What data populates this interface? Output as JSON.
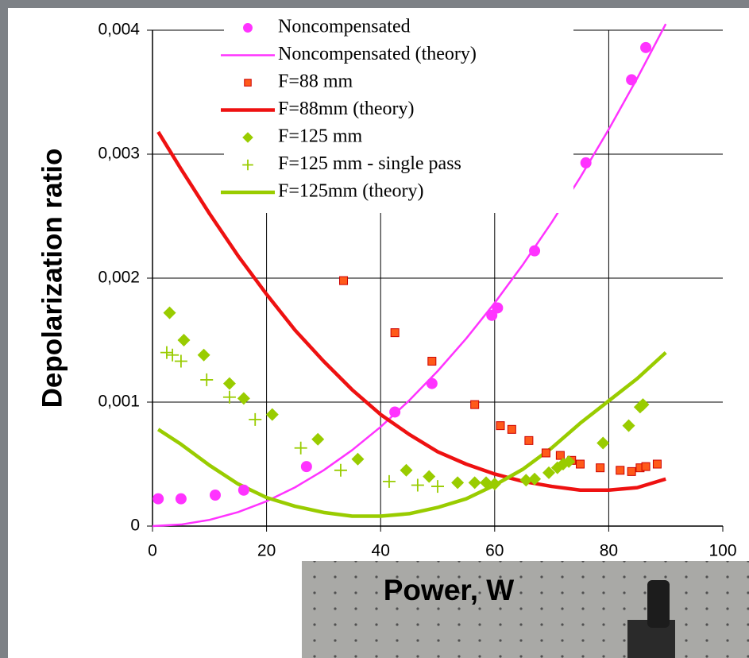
{
  "chart_data": {
    "type": "scatter",
    "x_label": "Power, W",
    "y_label": "Depolarization ratio",
    "xlim": [
      0,
      100
    ],
    "ylim": [
      0,
      0.004
    ],
    "xticks": [
      0,
      20,
      40,
      60,
      80,
      100
    ],
    "yticks": [
      0,
      {
        "value": 0.001,
        "label": "0,001"
      },
      {
        "value": 0.002,
        "label": "0,002"
      },
      {
        "value": 0.003,
        "label": "0,003"
      },
      {
        "value": 0.004,
        "label": "0,004"
      }
    ],
    "grid": true,
    "legend": "top",
    "series": [
      {
        "name": "Noncompensated",
        "marker": "circle",
        "color": "#ff33ff",
        "x": [
          1,
          5,
          11,
          16,
          27,
          42.5,
          49,
          59.5,
          60.5,
          67,
          76,
          84,
          86.5
        ],
        "values": [
          0.00022,
          0.00022,
          0.00025,
          0.00029,
          0.00048,
          0.00092,
          0.00115,
          0.0017,
          0.00176,
          0.00222,
          0.00293,
          0.0036,
          0.00386
        ]
      },
      {
        "name": "Noncompensated (theory)",
        "marker": "line",
        "color": "#ff33ff",
        "x": [
          0,
          5,
          10,
          15,
          20,
          25,
          30,
          35,
          40,
          45,
          50,
          55,
          60,
          65,
          70,
          75,
          80,
          85,
          90
        ],
        "values": [
          0,
          1.25e-05,
          5e-05,
          0.0001125,
          0.0002,
          0.0003125,
          0.00045,
          0.0006125,
          0.0008,
          0.0010125,
          0.00125,
          0.0015125,
          0.0018,
          0.0021125,
          0.00245,
          0.0028125,
          0.0032,
          0.0036125,
          0.00405
        ]
      },
      {
        "name": "F=88 mm",
        "marker": "square",
        "color": "#ff5a1a",
        "x": [
          33.5,
          42.5,
          49,
          56.5,
          61,
          63,
          66,
          69,
          71.5,
          73.5,
          75,
          78.5,
          82,
          84,
          85.5,
          86.5,
          88.5
        ],
        "values": [
          0.00198,
          0.00156,
          0.00133,
          0.00098,
          0.00081,
          0.00078,
          0.00069,
          0.00059,
          0.00057,
          0.00053,
          0.0005,
          0.00047,
          0.00045,
          0.00044,
          0.00047,
          0.00048,
          0.0005
        ]
      },
      {
        "name": "F=88mm (theory)",
        "marker": "line",
        "color": "#ee1111",
        "x": [
          1,
          5,
          10,
          15,
          20,
          25,
          30,
          35,
          40,
          45,
          50,
          55,
          60,
          65,
          70,
          75,
          80,
          85,
          90
        ],
        "values": [
          0.00318,
          0.00288,
          0.00252,
          0.00218,
          0.00187,
          0.00158,
          0.00133,
          0.0011,
          0.0009,
          0.00074,
          0.0006,
          0.0005,
          0.00042,
          0.00036,
          0.00032,
          0.00029,
          0.00029,
          0.00031,
          0.00038
        ]
      },
      {
        "name": "F=125 mm",
        "marker": "diamond",
        "color": "#99cc00",
        "x": [
          3,
          5.5,
          9,
          13.5,
          16,
          21,
          29,
          36,
          44.5,
          48.5,
          53.5,
          56.5,
          58.5,
          60,
          65.5,
          67,
          69.5,
          71,
          72,
          73,
          79,
          83.5,
          85.5,
          86
        ],
        "values": [
          0.00172,
          0.0015,
          0.00138,
          0.00115,
          0.00103,
          0.0009,
          0.0007,
          0.00054,
          0.00045,
          0.0004,
          0.00035,
          0.00035,
          0.00035,
          0.00034,
          0.00037,
          0.00038,
          0.00043,
          0.00047,
          0.0005,
          0.00052,
          0.00067,
          0.00081,
          0.00096,
          0.00098
        ]
      },
      {
        "name": "F=125 mm - single pass",
        "marker": "plus",
        "color": "#99cc00",
        "x": [
          2.5,
          3.5,
          5,
          9.5,
          13.5,
          18,
          26,
          33,
          41.5,
          46.5,
          50
        ],
        "values": [
          0.0014,
          0.00138,
          0.00133,
          0.00118,
          0.00104,
          0.00086,
          0.00063,
          0.00045,
          0.00036,
          0.00033,
          0.00032
        ]
      },
      {
        "name": "F=125mm (theory)",
        "marker": "line",
        "color": "#99cc00",
        "x": [
          1,
          5,
          10,
          15,
          20,
          25,
          30,
          35,
          40,
          45,
          50,
          55,
          60,
          65,
          70,
          75,
          80,
          85,
          90
        ],
        "values": [
          0.00078,
          0.00066,
          0.00049,
          0.00034,
          0.00023,
          0.00016,
          0.00011,
          8e-05,
          8e-05,
          0.0001,
          0.00015,
          0.00022,
          0.00033,
          0.00046,
          0.00063,
          0.00083,
          0.00101,
          0.00119,
          0.0014
        ]
      }
    ]
  }
}
